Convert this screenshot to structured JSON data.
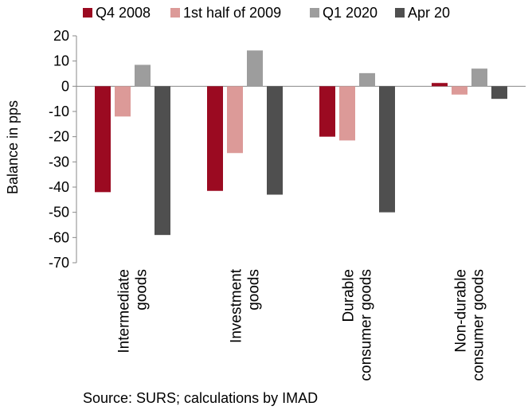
{
  "chart_data": {
    "type": "bar",
    "categories": [
      [
        "Intermediate",
        "goods"
      ],
      [
        "Investment",
        "goods"
      ],
      [
        "Durable",
        "consumer goods"
      ],
      [
        "Non-durable",
        "consumer goods"
      ]
    ],
    "series": [
      {
        "name": "Q4 2008",
        "color": "#9b0a21",
        "values": [
          -42,
          -41.5,
          -20,
          1.3
        ]
      },
      {
        "name": "1st half of 2009",
        "color": "#dc9a98",
        "values": [
          -12,
          -26.5,
          -21.5,
          -3.3
        ]
      },
      {
        "name": "Q1 2020",
        "color": "#9d9d9d",
        "values": [
          8.5,
          14.2,
          5.2,
          7
        ]
      },
      {
        "name": "Apr 20",
        "color": "#4f4f4f",
        "values": [
          -59,
          -43,
          -50,
          -5
        ]
      }
    ],
    "ylabel": "Balance in pps",
    "ylim": [
      -70,
      20
    ],
    "yticks": [
      20,
      10,
      0,
      -10,
      -20,
      -30,
      -40,
      -50,
      -60,
      -70
    ],
    "grid": false,
    "legend_position": "top"
  },
  "source_note": "Source: SURS; calculations by IMAD"
}
